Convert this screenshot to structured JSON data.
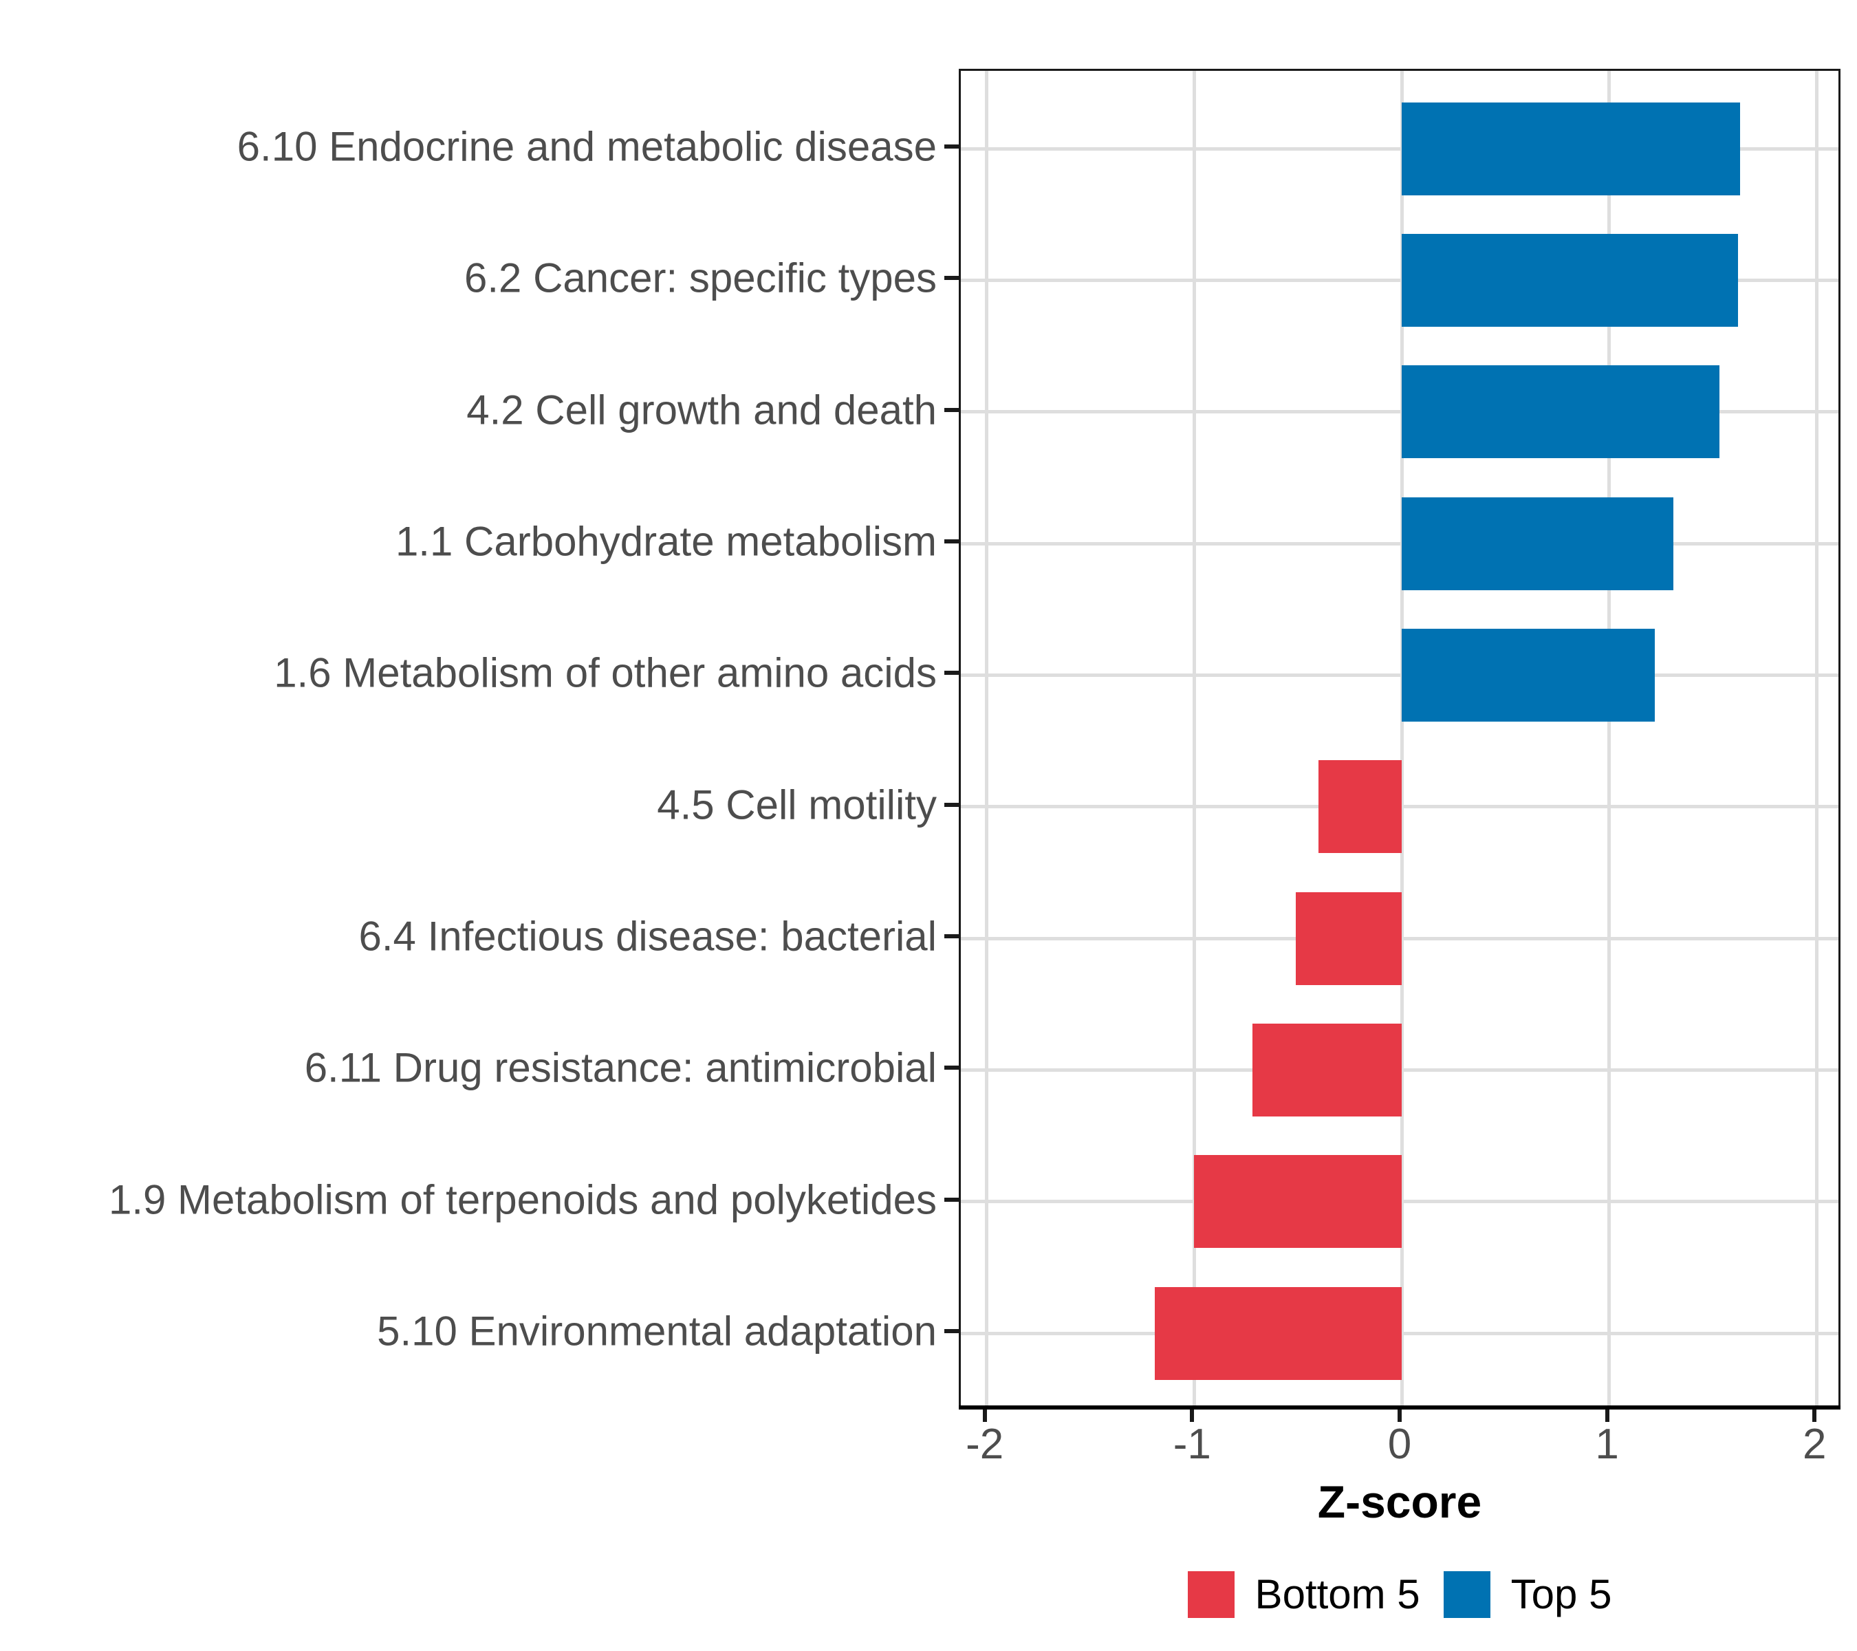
{
  "chart_data": {
    "type": "bar",
    "orientation": "horizontal",
    "title": "",
    "xlabel": "Z-score",
    "ylabel": "",
    "xlim": [
      -2.125,
      2.125
    ],
    "x_ticks": [
      -2,
      -1,
      0,
      1,
      2
    ],
    "x_tick_labels": [
      "-2",
      "-1",
      "0",
      "1",
      "2"
    ],
    "grid": true,
    "legend_position": "bottom",
    "categories": [
      "6.10 Endocrine and metabolic disease",
      "6.2 Cancer: specific types",
      "4.2 Cell growth and death",
      "1.1 Carbohydrate metabolism",
      "1.6 Metabolism of other amino acids",
      "4.5 Cell motility",
      "6.4 Infectious disease: bacterial",
      "6.11 Drug resistance: antimicrobial",
      "1.9 Metabolism of terpenoids and polyketides",
      "5.10 Environmental adaptation"
    ],
    "series": [
      {
        "name": "Z-score",
        "values": [
          1.63,
          1.62,
          1.53,
          1.31,
          1.22,
          -0.4,
          -0.51,
          -0.72,
          -1.0,
          -1.19
        ]
      }
    ],
    "groups": [
      "Top 5",
      "Top 5",
      "Top 5",
      "Top 5",
      "Top 5",
      "Bottom 5",
      "Bottom 5",
      "Bottom 5",
      "Bottom 5",
      "Bottom 5"
    ],
    "colors": {
      "Top 5": "#0072B2",
      "Bottom 5": "#E63946"
    }
  },
  "axis": {
    "x_title": "Z-score"
  },
  "legend": {
    "items": [
      {
        "label": "Bottom 5",
        "color": "#E63946"
      },
      {
        "label": "Top 5",
        "color": "#0072B2"
      }
    ]
  }
}
